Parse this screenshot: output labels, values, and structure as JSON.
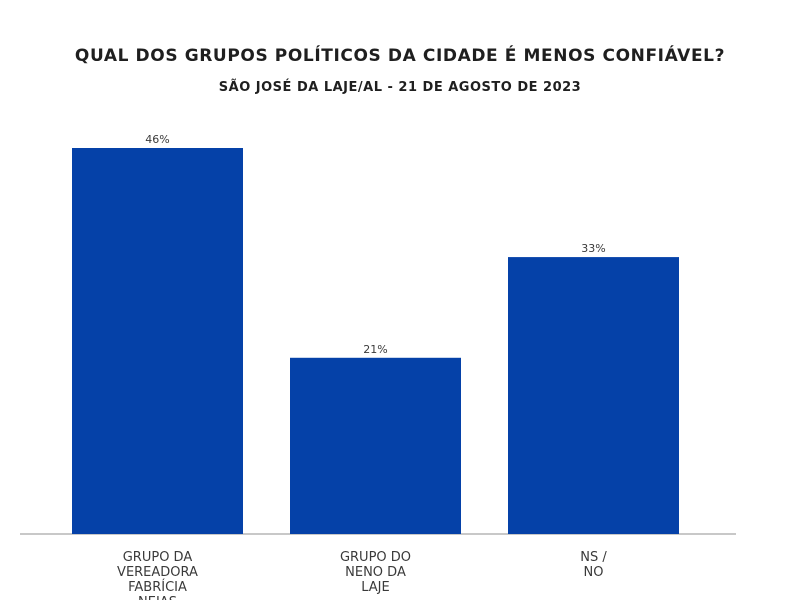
{
  "chart_data": {
    "type": "bar",
    "title": "QUAL DOS GRUPOS POLÍTICOS DA CIDADE É MENOS CONFIÁVEL?",
    "subtitle": "SÃO JOSÉ DA LAJE/AL - 21 DE AGOSTO DE 2023",
    "categories": [
      [
        "GRUPO DA",
        "VEREADORA",
        "FABRÍCIA",
        "NEIAS"
      ],
      [
        "GRUPO DO",
        "NENO DA",
        "LAJE"
      ],
      [
        "NS /",
        "NO"
      ]
    ],
    "values": [
      46,
      21,
      33
    ],
    "value_labels": [
      "46%",
      "21%",
      "33%"
    ],
    "unit": "%",
    "ylim": [
      0,
      46
    ],
    "bar_color": "#0541a8",
    "axis_color": "#c8c8c8",
    "grid": false,
    "legend": "none"
  }
}
